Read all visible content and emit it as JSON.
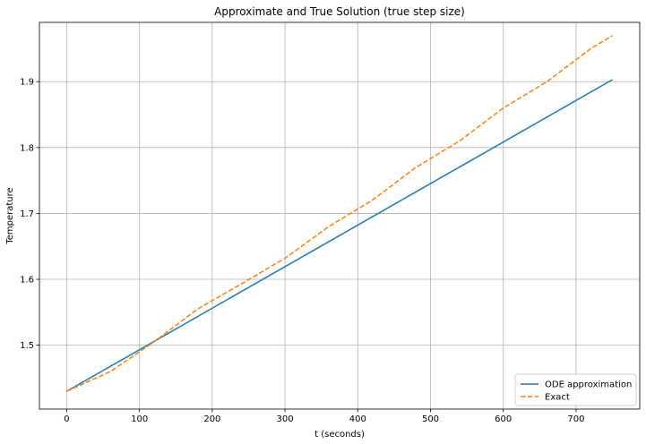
{
  "chart_data": {
    "type": "line",
    "title": "Approximate and True Solution (true step size)",
    "xlabel": "t (seconds)",
    "ylabel": "Temperature",
    "xlim": [
      -37.5,
      787.5
    ],
    "ylim": [
      1.403,
      1.99
    ],
    "xticks": [
      0,
      100,
      200,
      300,
      400,
      500,
      600,
      700
    ],
    "yticks": [
      1.5,
      1.6,
      1.7,
      1.8,
      1.9
    ],
    "ytick_labels": [
      "1.5",
      "1.6",
      "1.7",
      "1.8",
      "1.9"
    ],
    "grid": true,
    "legend_position": "lower-right",
    "series": [
      {
        "name": "ODE approximation",
        "style": "solid",
        "color": "#1f77b4",
        "x": [
          0,
          750
        ],
        "y": [
          1.43,
          1.903
        ]
      },
      {
        "name": "Exact",
        "style": "dashed",
        "color": "#ff7f0e",
        "x": [
          0,
          60,
          120,
          180,
          240,
          300,
          360,
          420,
          480,
          540,
          600,
          660,
          720,
          750
        ],
        "y": [
          1.43,
          1.46,
          1.505,
          1.555,
          1.593,
          1.632,
          1.68,
          1.72,
          1.77,
          1.81,
          1.86,
          1.9,
          1.95,
          1.97
        ]
      }
    ]
  }
}
